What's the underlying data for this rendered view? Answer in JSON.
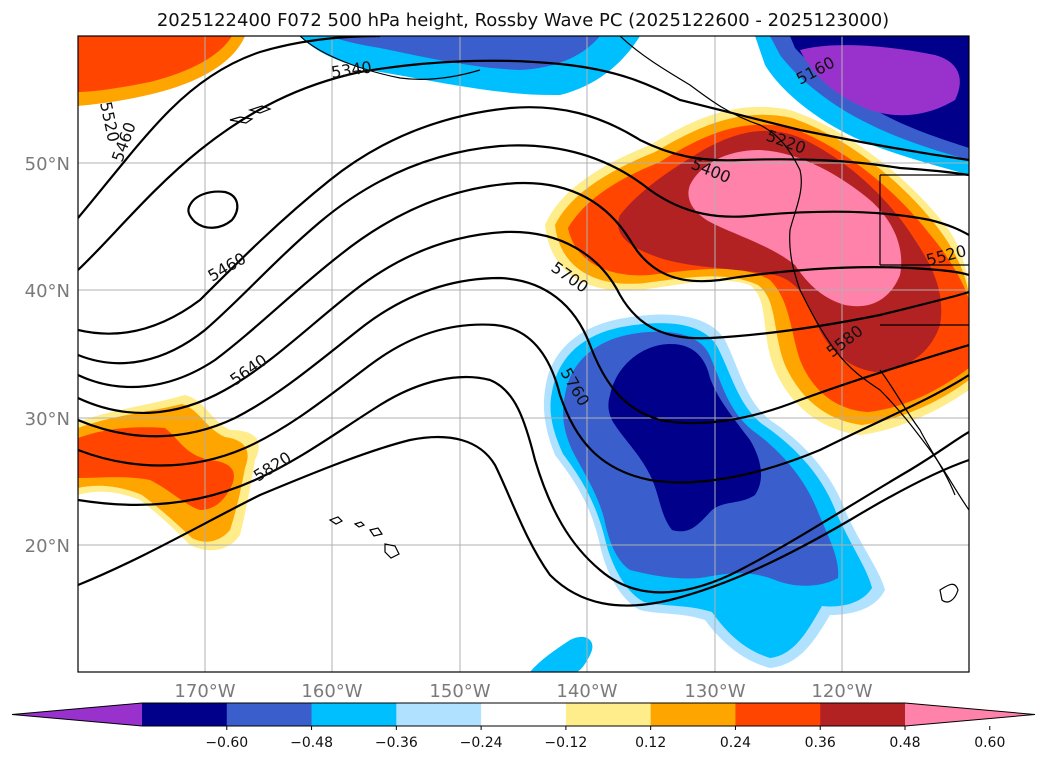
{
  "title": "2025122400 F072 500 hPa height, Rossby Wave PC (2025122600 - 2025123000)",
  "map": {
    "lon_ticks": [
      "170°W",
      "160°W",
      "150°W",
      "140°W",
      "130°W",
      "120°W"
    ],
    "lat_ticks": [
      "50°N",
      "40°N",
      "30°N",
      "20°N"
    ],
    "grid": true,
    "contour_labels": [
      "5520",
      "5460",
      "5340",
      "5160",
      "5220",
      "5400",
      "5460",
      "5700",
      "5520",
      "5640",
      "5760",
      "5580",
      "5820"
    ]
  },
  "colorbar": {
    "extend": "both",
    "colors": [
      "#9932cc",
      "#00008b",
      "#3a5fcd",
      "#00bfff",
      "#b0e2ff",
      "#ffffff",
      "#ffec8b",
      "#ffa500",
      "#ff4500",
      "#b22222",
      "#ff82ab"
    ],
    "ticks": [
      "−0.60",
      "−0.48",
      "−0.36",
      "−0.24",
      "−0.12",
      "0.12",
      "0.24",
      "0.36",
      "0.48",
      "0.60"
    ]
  }
}
